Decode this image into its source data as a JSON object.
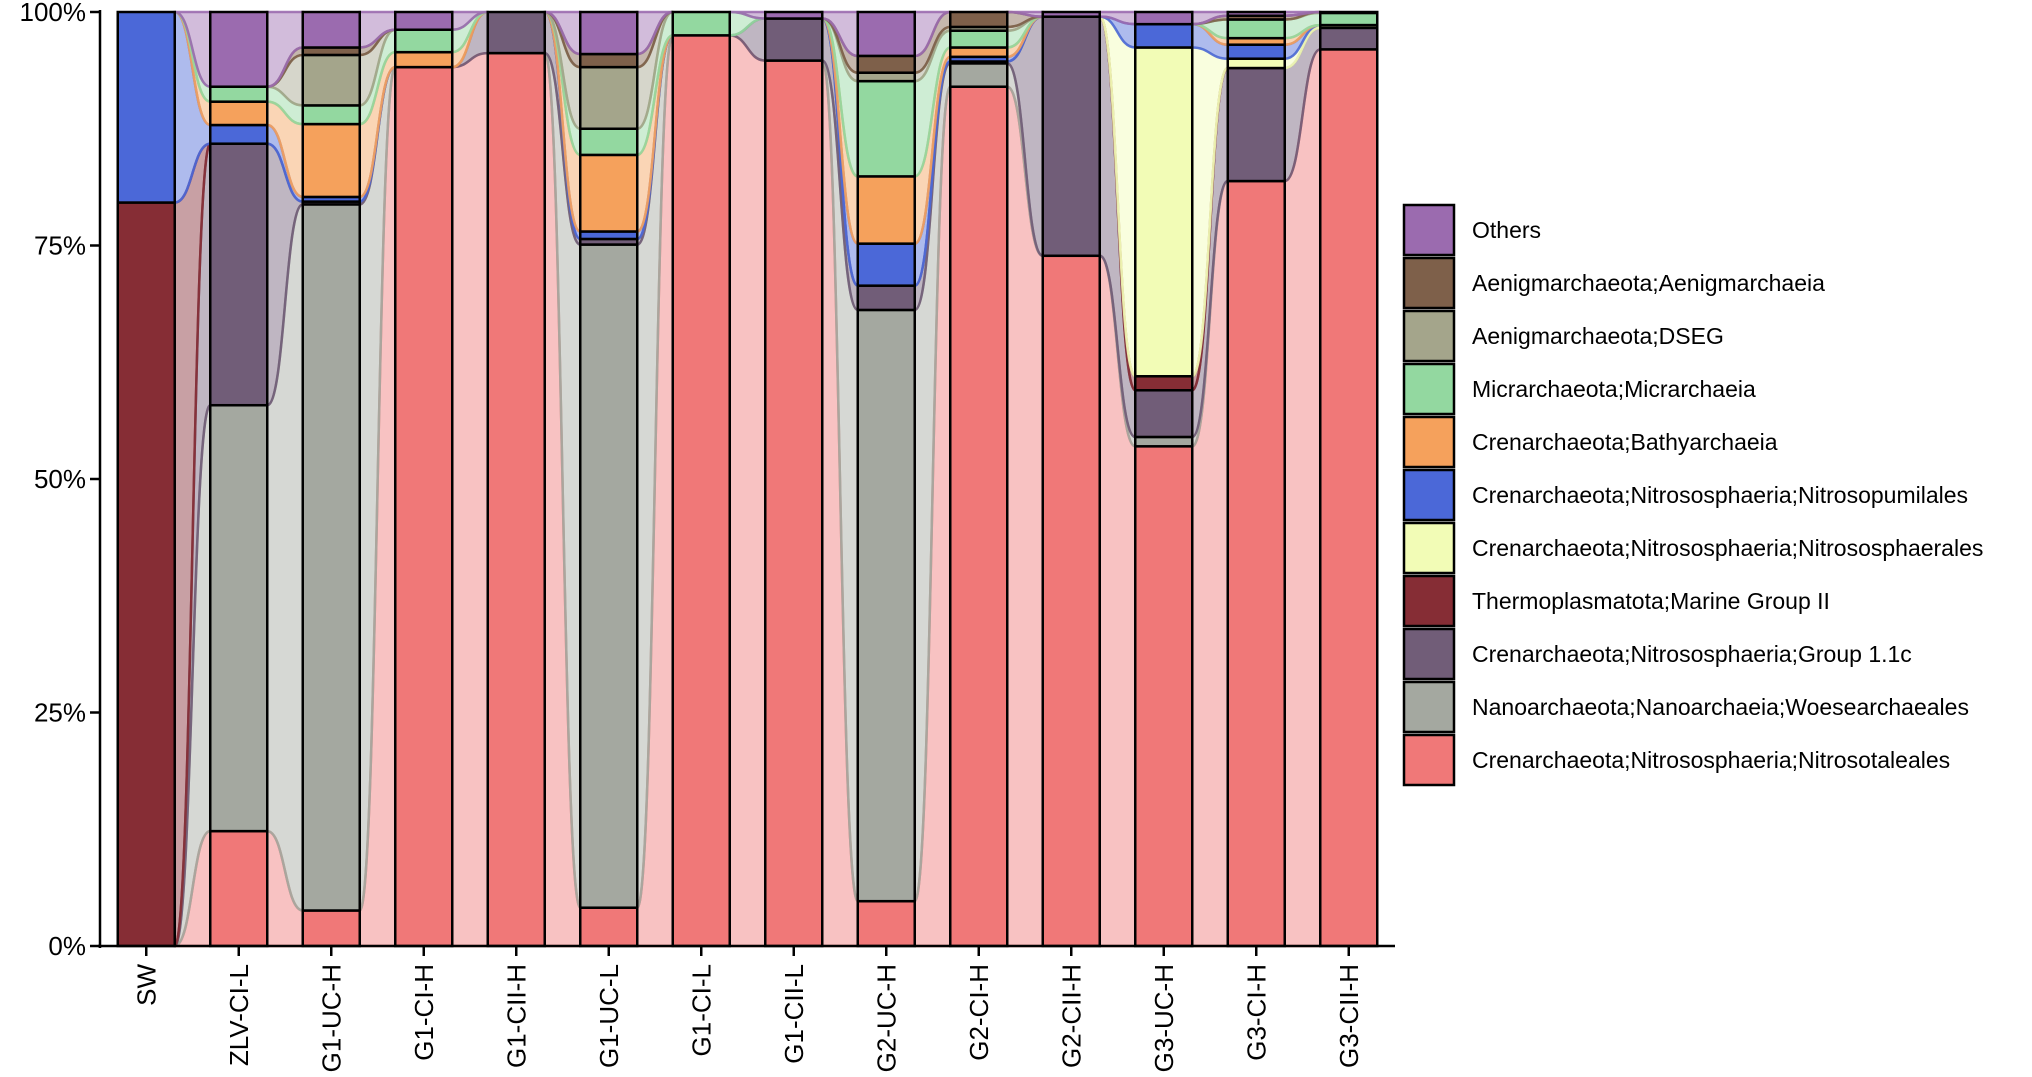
{
  "chart_data": {
    "type": "bar",
    "stacked": true,
    "percent": true,
    "alluvial_bands": true,
    "title": "",
    "xlabel": "",
    "ylabel": "",
    "ylim": [
      0,
      100
    ],
    "yticks": [
      0,
      25,
      50,
      75,
      100
    ],
    "ytick_labels": [
      "0%",
      "25%",
      "50%",
      "75%",
      "100%"
    ],
    "legend_position": "right",
    "categories": [
      "SW",
      "ZLV-CI-L",
      "G1-UC-H",
      "G1-CI-H",
      "G1-CII-H",
      "G1-UC-L",
      "G1-CI-L",
      "G1-CII-L",
      "G2-UC-H",
      "G2-CI-H",
      "G2-CII-H",
      "G3-UC-H",
      "G3-CI-H",
      "G3-CII-H"
    ],
    "series": [
      {
        "name": "Crenarchaeota;Nitrososphaeria;Nitrosotaleales",
        "color": "#F07878",
        "values": [
          0,
          12.3,
          3.8,
          94.1,
          95.6,
          4.1,
          97.5,
          94.8,
          4.8,
          92.0,
          73.9,
          53.5,
          81.9,
          96.0
        ]
      },
      {
        "name": "Nanoarchaeota;Nanoarchaeia;Woesearchaeales",
        "color": "#A4A8A0",
        "values": [
          0,
          45.6,
          75.6,
          0,
          0,
          71.0,
          0,
          0,
          63.3,
          2.5,
          0,
          1.0,
          0,
          0
        ]
      },
      {
        "name": "Crenarchaeota;Nitrososphaeria;Group 1.1c",
        "color": "#715D78",
        "values": [
          0,
          28.0,
          0.3,
          0,
          4.4,
          0.6,
          0,
          4.5,
          2.6,
          0.2,
          25.6,
          5.0,
          12.1,
          2.3
        ]
      },
      {
        "name": "Thermoplasmatota;Marine Group II",
        "color": "#862D35",
        "values": [
          79.6,
          0,
          0,
          0,
          0,
          0,
          0,
          0,
          0,
          0,
          0,
          1.5,
          0,
          0
        ]
      },
      {
        "name": "Crenarchaeota;Nitrososphaeria;Nitrososphaerales",
        "color": "#F2FCB6",
        "values": [
          0,
          0,
          0,
          0,
          0,
          0,
          0,
          0,
          0,
          0,
          0,
          35.2,
          1.0,
          0.3
        ]
      },
      {
        "name": "Crenarchaeota;Nitrososphaeria;Nitrosopumilales",
        "color": "#4B68D8",
        "values": [
          20.4,
          2.0,
          0.5,
          0,
          0,
          0.8,
          0,
          0,
          4.5,
          0.5,
          0,
          2.5,
          1.5,
          0
        ]
      },
      {
        "name": "Crenarchaeota;Bathyarchaeia",
        "color": "#F5A15C",
        "values": [
          0,
          2.5,
          7.8,
          1.6,
          0,
          8.2,
          0,
          0,
          7.2,
          1.0,
          0,
          0,
          0.7,
          0
        ]
      },
      {
        "name": "Micrarchaeota;Micrarchaeia",
        "color": "#93D8A0",
        "values": [
          0,
          1.6,
          2.0,
          2.4,
          0,
          2.8,
          2.5,
          0,
          10.2,
          1.8,
          0,
          0,
          2.0,
          1.3
        ]
      },
      {
        "name": "Aenigmarchaeota;DSEG",
        "color": "#A4A58B",
        "values": [
          0,
          0,
          5.4,
          0,
          0,
          6.6,
          0,
          0,
          0.9,
          0.4,
          0,
          0,
          0,
          0.1
        ]
      },
      {
        "name": "Aenigmarchaeota;Aenigmarchaeia",
        "color": "#7E604A",
        "values": [
          0,
          0,
          0.8,
          0,
          0,
          1.4,
          0,
          0,
          1.8,
          1.6,
          0,
          0,
          0.4,
          0
        ]
      },
      {
        "name": "Others",
        "color": "#9B6BAF",
        "values": [
          0,
          8.0,
          3.8,
          1.9,
          0,
          4.5,
          0,
          0.7,
          4.7,
          0,
          0.5,
          1.3,
          0.4,
          0
        ]
      }
    ],
    "legend_order": [
      "Others",
      "Aenigmarchaeota;Aenigmarchaeia",
      "Aenigmarchaeota;DSEG",
      "Micrarchaeota;Micrarchaeia",
      "Crenarchaeota;Bathyarchaeia",
      "Crenarchaeota;Nitrososphaeria;Nitrosopumilales",
      "Crenarchaeota;Nitrososphaeria;Nitrososphaerales",
      "Thermoplasmatota;Marine Group II",
      "Crenarchaeota;Nitrososphaeria;Group 1.1c",
      "Nanoarchaeota;Nanoarchaeia;Woesearchaeales",
      "Crenarchaeota;Nitrososphaeria;Nitrosotaleales"
    ]
  }
}
